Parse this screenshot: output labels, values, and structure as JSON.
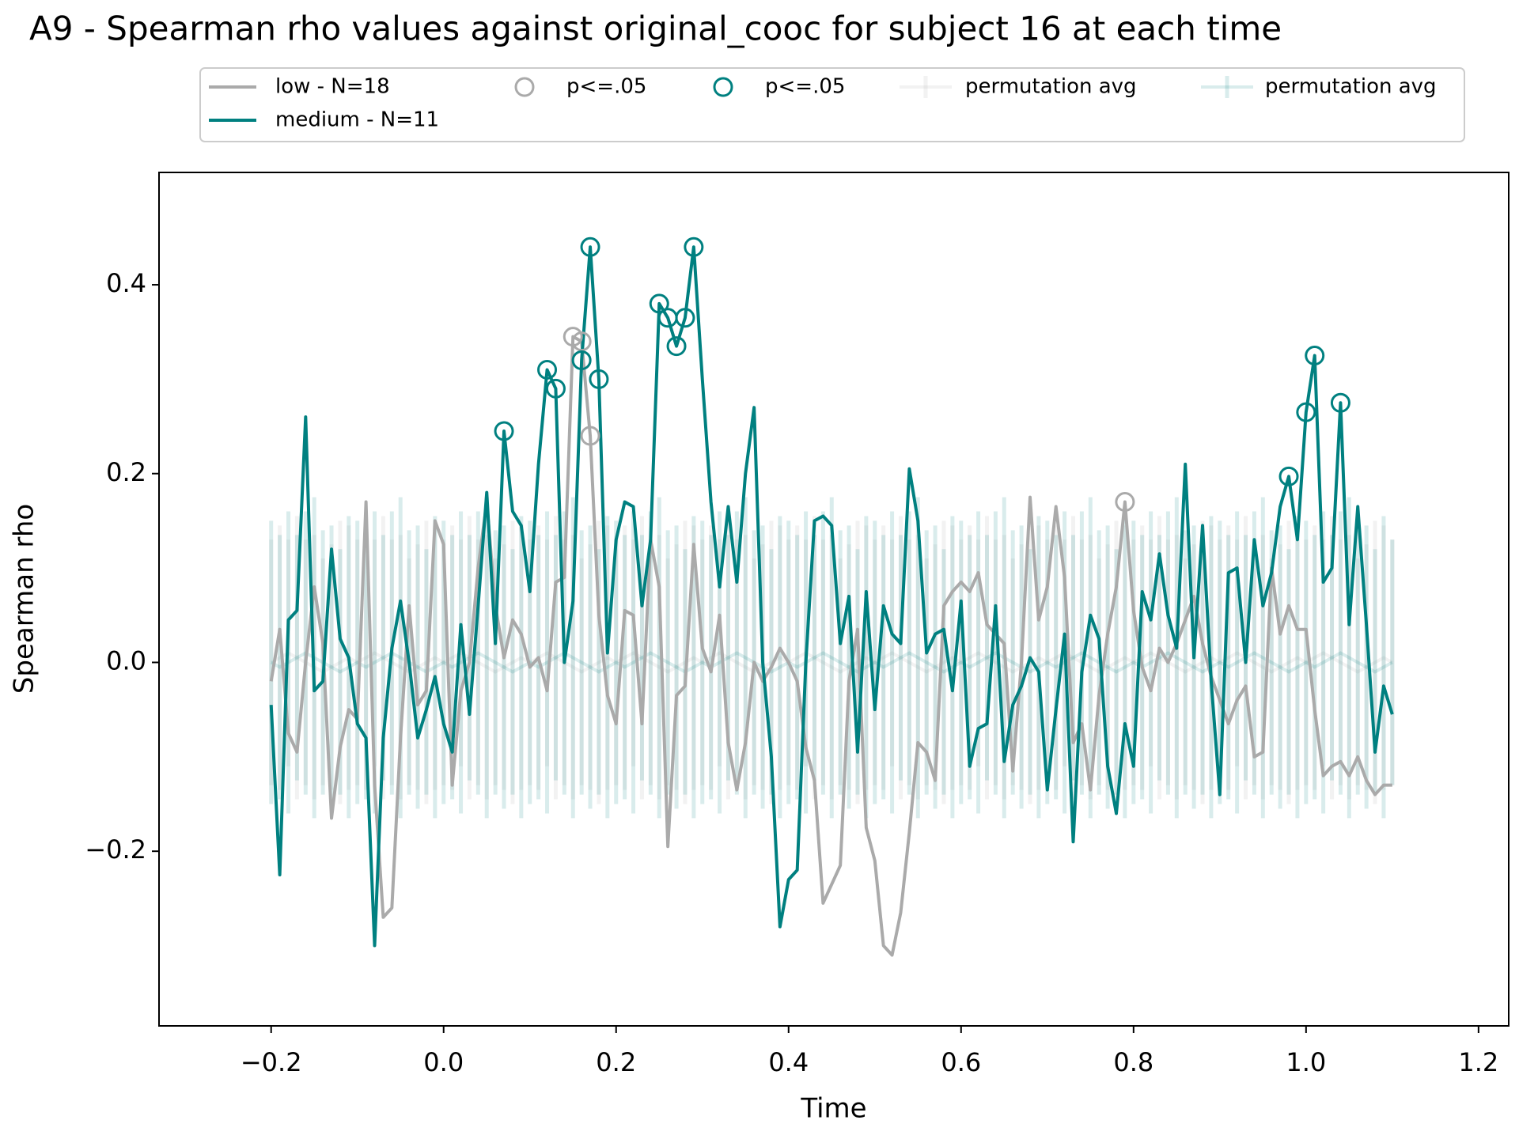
{
  "chart_data": {
    "type": "line",
    "title": "A9 - Spearman rho values against original_cooc for subject 16 at each time",
    "xlabel": "Time",
    "ylabel": "Spearman rho",
    "xlim": [
      -0.33,
      1.235
    ],
    "ylim": [
      -0.385,
      0.519
    ],
    "xticks": [
      {
        "value": -0.2,
        "label": "−0.2"
      },
      {
        "value": 0,
        "label": "0.0"
      },
      {
        "value": 0.2,
        "label": "0.2"
      },
      {
        "value": 0.4,
        "label": "0.4"
      },
      {
        "value": 0.6,
        "label": "0.6"
      },
      {
        "value": 0.8,
        "label": "0.8"
      },
      {
        "value": 1,
        "label": "1.0"
      },
      {
        "value": 1.2,
        "label": "1.2"
      }
    ],
    "yticks": [
      {
        "value": -0.2,
        "label": "−0.2"
      },
      {
        "value": 0,
        "label": "0.0"
      },
      {
        "value": 0.2,
        "label": "0.2"
      },
      {
        "value": 0.4,
        "label": "0.4"
      }
    ],
    "legend": "upper center",
    "x": [
      -0.2,
      -0.19,
      -0.18,
      -0.17,
      -0.16,
      -0.15,
      -0.14,
      -0.13,
      -0.12,
      -0.11,
      -0.1,
      -0.09,
      -0.08,
      -0.07,
      -0.06,
      -0.05,
      -0.04,
      -0.03,
      -0.02,
      -0.01,
      0,
      0.01,
      0.02,
      0.03,
      0.04,
      0.05,
      0.06,
      0.07,
      0.08,
      0.09,
      0.1,
      0.11,
      0.12,
      0.13,
      0.14,
      0.15,
      0.16,
      0.17,
      0.18,
      0.19,
      0.2,
      0.21,
      0.22,
      0.23,
      0.24,
      0.25,
      0.26,
      0.27,
      0.28,
      0.29,
      0.3,
      0.31,
      0.32,
      0.33,
      0.34,
      0.35,
      0.36,
      0.37,
      0.38,
      0.39,
      0.4,
      0.41,
      0.42,
      0.43,
      0.44,
      0.45,
      0.46,
      0.47,
      0.48,
      0.49,
      0.5,
      0.51,
      0.52,
      0.53,
      0.54,
      0.55,
      0.56,
      0.57,
      0.58,
      0.59,
      0.6,
      0.61,
      0.62,
      0.63,
      0.64,
      0.65,
      0.66,
      0.67,
      0.68,
      0.69,
      0.7,
      0.71,
      0.72,
      0.73,
      0.74,
      0.75,
      0.76,
      0.77,
      0.78,
      0.79,
      0.8,
      0.81,
      0.82,
      0.83,
      0.84,
      0.85,
      0.86,
      0.87,
      0.88,
      0.89,
      0.9,
      0.91,
      0.92,
      0.93,
      0.94,
      0.95,
      0.96,
      0.97,
      0.98,
      0.99,
      1,
      1.01,
      1.02,
      1.03,
      1.04,
      1.05,
      1.06,
      1.07,
      1.08,
      1.09,
      1.1
    ],
    "series": [
      {
        "name": "low - N=18",
        "kind": "line",
        "color": "#aaaaaa",
        "values": [
          -0.02,
          0.035,
          -0.075,
          -0.095,
          0.0,
          0.08,
          0.02,
          -0.165,
          -0.09,
          -0.05,
          -0.06,
          0.17,
          -0.13,
          -0.27,
          -0.26,
          -0.08,
          0.06,
          -0.045,
          -0.03,
          0.15,
          0.125,
          -0.13,
          -0.03,
          0.0,
          0.1,
          0.17,
          0.06,
          0.005,
          0.045,
          0.03,
          -0.005,
          0.005,
          -0.03,
          0.085,
          0.09,
          0.345,
          0.34,
          0.24,
          0.05,
          -0.035,
          -0.065,
          0.055,
          0.05,
          -0.065,
          0.13,
          0.08,
          -0.195,
          -0.035,
          -0.025,
          0.125,
          0.015,
          -0.01,
          0.05,
          -0.085,
          -0.135,
          -0.085,
          0.0,
          -0.02,
          -0.005,
          0.015,
          0.0,
          -0.02,
          -0.09,
          -0.125,
          -0.255,
          -0.235,
          -0.215,
          -0.02,
          0.035,
          -0.175,
          -0.21,
          -0.3,
          -0.31,
          -0.265,
          -0.18,
          -0.085,
          -0.095,
          -0.125,
          0.06,
          0.075,
          0.085,
          0.075,
          0.095,
          0.04,
          0.03,
          0.02,
          -0.115,
          0.0,
          0.175,
          0.045,
          0.08,
          0.165,
          0.09,
          -0.085,
          -0.065,
          -0.135,
          -0.035,
          0.03,
          0.08,
          0.17,
          0.055,
          -0.005,
          -0.03,
          0.015,
          0.0,
          0.02,
          0.045,
          0.07,
          0.02,
          -0.015,
          -0.04,
          -0.065,
          -0.04,
          -0.025,
          -0.1,
          -0.095,
          0.1,
          0.03,
          0.06,
          0.035,
          0.035,
          -0.05,
          -0.12,
          -0.11,
          -0.105,
          -0.12,
          -0.1,
          -0.125,
          -0.14,
          -0.13,
          -0.13
        ]
      },
      {
        "name": "medium - N=11",
        "kind": "line",
        "color": "#008080",
        "values": [
          -0.045,
          -0.225,
          0.045,
          0.055,
          0.26,
          -0.03,
          -0.02,
          0.12,
          0.025,
          0.005,
          -0.065,
          -0.08,
          -0.3,
          -0.08,
          0.015,
          0.065,
          0.0,
          -0.08,
          -0.05,
          -0.015,
          -0.065,
          -0.095,
          0.04,
          -0.055,
          0.06,
          0.18,
          0.02,
          0.245,
          0.16,
          0.145,
          0.075,
          0.21,
          0.31,
          0.29,
          0.0,
          0.065,
          0.32,
          0.44,
          0.3,
          0.01,
          0.13,
          0.17,
          0.165,
          0.06,
          0.13,
          0.38,
          0.365,
          0.335,
          0.365,
          0.44,
          0.3,
          0.17,
          0.08,
          0.165,
          0.085,
          0.2,
          0.27,
          0.0,
          -0.1,
          -0.28,
          -0.23,
          -0.22,
          0.0,
          0.15,
          0.155,
          0.145,
          0.02,
          0.07,
          -0.095,
          0.075,
          -0.05,
          0.06,
          0.03,
          0.02,
          0.205,
          0.15,
          0.01,
          0.03,
          0.035,
          -0.03,
          0.065,
          -0.11,
          -0.07,
          -0.065,
          0.06,
          -0.105,
          -0.045,
          -0.025,
          0.005,
          -0.01,
          -0.135,
          -0.05,
          0.03,
          -0.19,
          -0.01,
          0.05,
          0.025,
          -0.11,
          -0.16,
          -0.065,
          -0.11,
          0.075,
          0.045,
          0.115,
          0.05,
          0.015,
          0.21,
          0.005,
          0.145,
          -0.02,
          -0.14,
          0.095,
          0.1,
          0.0,
          0.13,
          0.06,
          0.095,
          0.165,
          0.197,
          0.13,
          0.265,
          0.325,
          0.085,
          0.1,
          0.275,
          0.04,
          0.165,
          0.04,
          -0.095,
          -0.025,
          -0.055
        ]
      },
      {
        "name": "p<=.05",
        "kind": "marker",
        "color": "#aaaaaa",
        "x": [
          0.15,
          0.16,
          0.17,
          0.79
        ],
        "values": [
          0.345,
          0.34,
          0.24,
          0.17
        ]
      },
      {
        "name": "p<=.05",
        "kind": "marker",
        "color": "#008080",
        "x": [
          0.07,
          0.12,
          0.13,
          0.16,
          0.17,
          0.18,
          0.25,
          0.26,
          0.27,
          0.28,
          0.29,
          0.98,
          1,
          1.01,
          1.04
        ],
        "values": [
          0.245,
          0.31,
          0.29,
          0.32,
          0.44,
          0.3,
          0.38,
          0.365,
          0.335,
          0.365,
          0.44,
          0.197,
          0.265,
          0.325,
          0.275
        ]
      },
      {
        "name": "permutation avg",
        "kind": "errorbar",
        "color": "#aaaaaa",
        "alpha": 0.15,
        "values": [
          0,
          0.005,
          0.01,
          0.005,
          0,
          -0.005,
          -0.01,
          -0.005,
          0,
          0.005,
          0,
          0.005,
          0.01,
          0.005,
          0,
          -0.005,
          -0.01,
          -0.005,
          0,
          0.005,
          0,
          0.005,
          0.01,
          0.005,
          0,
          -0.005,
          -0.01,
          -0.005,
          0,
          0.005,
          0,
          0.005,
          0.01,
          0.005,
          0,
          -0.005,
          -0.01,
          -0.005,
          0,
          0.005,
          0,
          0.005,
          0.01,
          0.005,
          0,
          -0.005,
          -0.01,
          -0.005,
          0,
          0.005,
          0,
          0.005,
          0.01,
          0.005,
          0,
          -0.005,
          -0.01,
          -0.005,
          0,
          0.005,
          0,
          0.005,
          0.01,
          0.005,
          0,
          -0.005,
          -0.01,
          -0.005,
          0,
          0.005,
          0,
          0.005,
          0.01,
          0.005,
          0,
          -0.005,
          -0.01,
          -0.005,
          0,
          0.005,
          0,
          0.005,
          0.01,
          0.005,
          0,
          -0.005,
          -0.01,
          -0.005,
          0,
          0.005,
          0,
          0.005,
          0.01,
          0.005,
          0,
          -0.005,
          -0.01,
          -0.005,
          0,
          0.005,
          0,
          0.005,
          0.01,
          0.005,
          0,
          -0.005,
          -0.01,
          -0.005,
          0,
          0.005,
          0,
          0.005,
          0.01,
          0.005,
          0,
          -0.005,
          -0.01,
          -0.005,
          0,
          0.005,
          0,
          0.005,
          0.01,
          0.005,
          0,
          -0.005,
          -0.01,
          -0.005,
          0,
          0.005,
          0
        ],
        "errors": [
          0.13,
          0.14,
          0.12,
          0.15,
          0.13,
          0.14,
          0.12,
          0.13,
          0.15,
          0.14,
          0.13,
          0.14,
          0.12,
          0.15,
          0.13,
          0.14,
          0.12,
          0.13,
          0.15,
          0.14,
          0.13,
          0.14,
          0.12,
          0.15,
          0.13,
          0.14,
          0.12,
          0.13,
          0.15,
          0.14,
          0.13,
          0.14,
          0.12,
          0.15,
          0.13,
          0.14,
          0.12,
          0.13,
          0.15,
          0.14,
          0.13,
          0.14,
          0.12,
          0.15,
          0.13,
          0.14,
          0.12,
          0.13,
          0.15,
          0.14,
          0.13,
          0.14,
          0.12,
          0.15,
          0.13,
          0.14,
          0.12,
          0.13,
          0.15,
          0.14,
          0.13,
          0.14,
          0.12,
          0.15,
          0.13,
          0.14,
          0.12,
          0.13,
          0.15,
          0.14,
          0.13,
          0.14,
          0.12,
          0.15,
          0.13,
          0.14,
          0.12,
          0.13,
          0.15,
          0.14,
          0.13,
          0.14,
          0.12,
          0.15,
          0.13,
          0.14,
          0.12,
          0.13,
          0.15,
          0.14,
          0.13,
          0.14,
          0.12,
          0.15,
          0.13,
          0.14,
          0.12,
          0.13,
          0.15,
          0.14,
          0.13,
          0.14,
          0.12,
          0.15,
          0.13,
          0.14,
          0.12,
          0.13,
          0.15,
          0.14,
          0.13,
          0.14,
          0.12,
          0.15,
          0.13,
          0.14,
          0.12,
          0.13,
          0.15,
          0.14,
          0.13,
          0.14,
          0.12,
          0.15,
          0.13,
          0.14,
          0.12,
          0.13,
          0.15,
          0.14,
          0.13
        ]
      },
      {
        "name": "permutation avg",
        "kind": "errorbar",
        "color": "#008080",
        "alpha": 0.15,
        "values": [
          0,
          -0.005,
          0,
          0.005,
          0.01,
          0.005,
          0,
          -0.005,
          -0.01,
          -0.005,
          0,
          -0.005,
          0,
          0.005,
          0.01,
          0.005,
          0,
          -0.005,
          -0.01,
          -0.005,
          0,
          -0.005,
          0,
          0.005,
          0.01,
          0.005,
          0,
          -0.005,
          -0.01,
          -0.005,
          0,
          -0.005,
          0,
          0.005,
          0.01,
          0.005,
          0,
          -0.005,
          -0.01,
          -0.005,
          0,
          -0.005,
          0,
          0.005,
          0.01,
          0.005,
          0,
          -0.005,
          -0.01,
          -0.005,
          0,
          -0.005,
          0,
          0.005,
          0.01,
          0.005,
          0,
          -0.005,
          -0.01,
          -0.005,
          0,
          -0.005,
          0,
          0.005,
          0.01,
          0.005,
          0,
          -0.005,
          -0.01,
          -0.005,
          0,
          -0.005,
          0,
          0.005,
          0.01,
          0.005,
          0,
          -0.005,
          -0.01,
          -0.005,
          0,
          -0.005,
          0,
          0.005,
          0.01,
          0.005,
          0,
          -0.005,
          -0.01,
          -0.005,
          0,
          -0.005,
          0,
          0.005,
          0.01,
          0.005,
          0,
          -0.005,
          -0.01,
          -0.005,
          0,
          -0.005,
          0,
          0.005,
          0.01,
          0.005,
          0,
          -0.005,
          -0.01,
          -0.005,
          0,
          -0.005,
          0,
          0.005,
          0.01,
          0.005,
          0,
          -0.005,
          -0.01,
          -0.005,
          0,
          -0.005,
          0,
          0.005,
          0.01,
          0.005,
          0,
          -0.005,
          -0.01,
          -0.005,
          0
        ],
        "errors": [
          0.15,
          0.14,
          0.16,
          0.13,
          0.15,
          0.17,
          0.14,
          0.15,
          0.13,
          0.16,
          0.15,
          0.14,
          0.16,
          0.13,
          0.15,
          0.17,
          0.14,
          0.15,
          0.13,
          0.16,
          0.15,
          0.14,
          0.16,
          0.13,
          0.15,
          0.17,
          0.14,
          0.15,
          0.13,
          0.16,
          0.15,
          0.14,
          0.16,
          0.13,
          0.15,
          0.17,
          0.14,
          0.15,
          0.13,
          0.16,
          0.15,
          0.14,
          0.16,
          0.13,
          0.15,
          0.17,
          0.14,
          0.15,
          0.13,
          0.16,
          0.15,
          0.14,
          0.16,
          0.13,
          0.15,
          0.17,
          0.14,
          0.15,
          0.13,
          0.16,
          0.15,
          0.14,
          0.16,
          0.13,
          0.15,
          0.17,
          0.14,
          0.15,
          0.13,
          0.16,
          0.15,
          0.14,
          0.16,
          0.13,
          0.15,
          0.17,
          0.14,
          0.15,
          0.13,
          0.16,
          0.15,
          0.14,
          0.16,
          0.13,
          0.15,
          0.17,
          0.14,
          0.15,
          0.13,
          0.16,
          0.15,
          0.14,
          0.16,
          0.13,
          0.15,
          0.17,
          0.14,
          0.15,
          0.13,
          0.16,
          0.15,
          0.14,
          0.16,
          0.13,
          0.15,
          0.17,
          0.14,
          0.15,
          0.13,
          0.16,
          0.15,
          0.14,
          0.16,
          0.13,
          0.15,
          0.17,
          0.14,
          0.15,
          0.13,
          0.16,
          0.15,
          0.14,
          0.16,
          0.13,
          0.15,
          0.17,
          0.14,
          0.15,
          0.13,
          0.16,
          0.13
        ]
      }
    ]
  }
}
